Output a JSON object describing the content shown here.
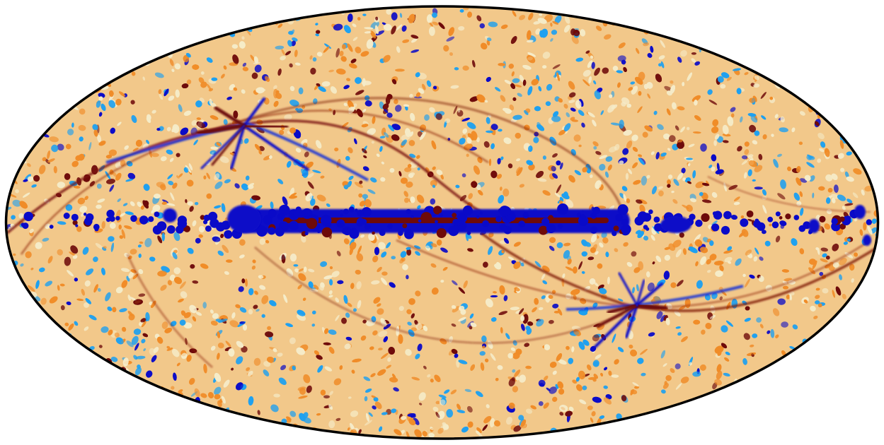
{
  "map": {
    "projection": "mollweide",
    "coordinate_frame": "galactic",
    "outline_color": "#000000",
    "background_color": "#ffffff",
    "colormap": {
      "name": "planck-diverging",
      "low": "#0a0ac8",
      "mid_low": "#1ea0f0",
      "mid": "#f5ebc8",
      "mid_high": "#f08c28",
      "high": "#6e0a0a"
    },
    "features": {
      "galactic_plane_band": true,
      "scan_pattern_arcs": true,
      "ecliptic_poles": 2
    }
  }
}
